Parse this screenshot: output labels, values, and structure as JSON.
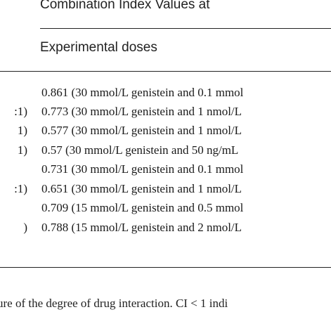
{
  "table": {
    "header_top": "Combination Index Values at",
    "header_sub": "Experimental doses",
    "rows": [
      {
        "left_fragment": "",
        "value": "0.861 (30 mmol/L genistein and 0.1 mmol"
      },
      {
        "left_fragment": ":1)",
        "value": "0.773 (30 mmol/L genistein and 1 nmol/L"
      },
      {
        "left_fragment": "1)",
        "value": "0.577 (30 mmol/L genistein and 1 nmol/L"
      },
      {
        "left_fragment": "1)",
        "value": "0.57 (30 mmol/L genistein and 50 ng/mL"
      },
      {
        "left_fragment": "",
        "value": "0.731 (30 mmol/L genistein and 0.1 mmol"
      },
      {
        "left_fragment": ":1)",
        "value": "0.651 (30 mmol/L genistein and 1 nmol/L"
      },
      {
        "left_fragment": "",
        "value": "0.709 (15 mmol/L genistein and 0.5 mmol"
      },
      {
        "left_fragment": ")",
        "value": "0.788 (15 mmol/L genistein and 2 nmol/L"
      }
    ]
  },
  "footnote": "ure of the degree of drug interaction. CI < 1 indi"
}
